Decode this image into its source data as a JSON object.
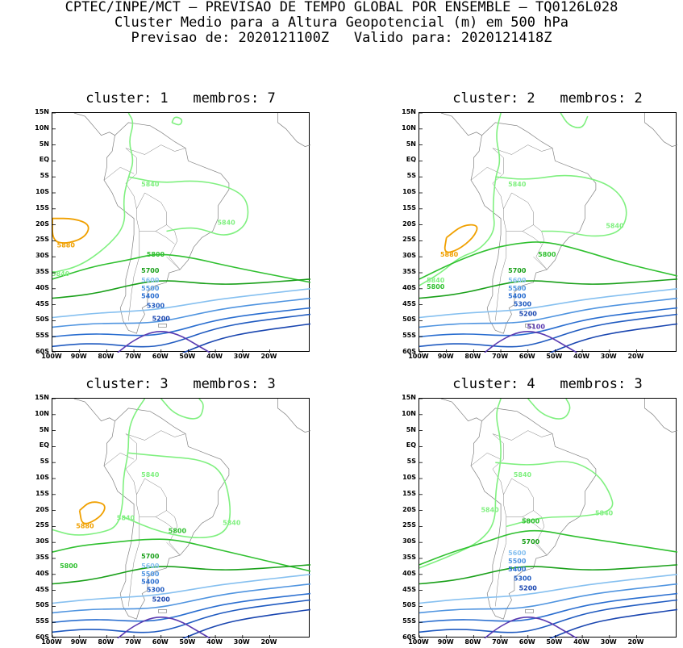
{
  "header": {
    "line1": "CPTEC/INPE/MCT – PREVISAO DE TEMPO GLOBAL POR ENSEMBLE – TQ0126L028",
    "line2": "Cluster Medio para a Altura Geopotencial (m) em 500 hPa",
    "line3": "Previsao de: 2020121100Z   Valido para: 2020121418Z"
  },
  "lat_labels": [
    "15N",
    "10N",
    "5N",
    "EQ",
    "5S",
    "10S",
    "15S",
    "20S",
    "25S",
    "30S",
    "35S",
    "40S",
    "45S",
    "50S",
    "55S",
    "60S"
  ],
  "lon_labels": [
    "100W",
    "90W",
    "80W",
    "70W",
    "60W",
    "50W",
    "40W",
    "30W",
    "20W"
  ],
  "panels": [
    {
      "title": "cluster: 1   membros: 7",
      "labels": [
        "5880",
        "5840",
        "5840",
        "5840",
        "5800",
        "5700",
        "5600",
        "5500",
        "5400",
        "5300",
        "5200"
      ]
    },
    {
      "title": "cluster: 2   membros: 2",
      "labels": [
        "5880",
        "5840",
        "5840",
        "5840",
        "5800",
        "5800",
        "5700",
        "5600",
        "5500",
        "5400",
        "5300",
        "5200",
        "5100"
      ]
    },
    {
      "title": "cluster: 3   membros: 3",
      "labels": [
        "5880",
        "5840",
        "5840",
        "5840",
        "5800",
        "5800",
        "5700",
        "5600",
        "5500",
        "5400",
        "5300",
        "5200"
      ]
    },
    {
      "title": "cluster: 4   membros: 3",
      "labels": [
        "5840",
        "5840",
        "5840",
        "5800",
        "5700",
        "5600",
        "5500",
        "5400",
        "5300",
        "5200"
      ]
    }
  ],
  "colors": {
    "5880": "#f0a000",
    "5840": "#80f080",
    "5800": "#30c030",
    "5700": "#1aa01a",
    "5600": "#86c0f0",
    "5500": "#4f94e0",
    "5400": "#2a6ed0",
    "5300": "#1f5ac0",
    "5200": "#1a46b0",
    "5100": "#5a3ab0",
    "coast": "#808080"
  }
}
